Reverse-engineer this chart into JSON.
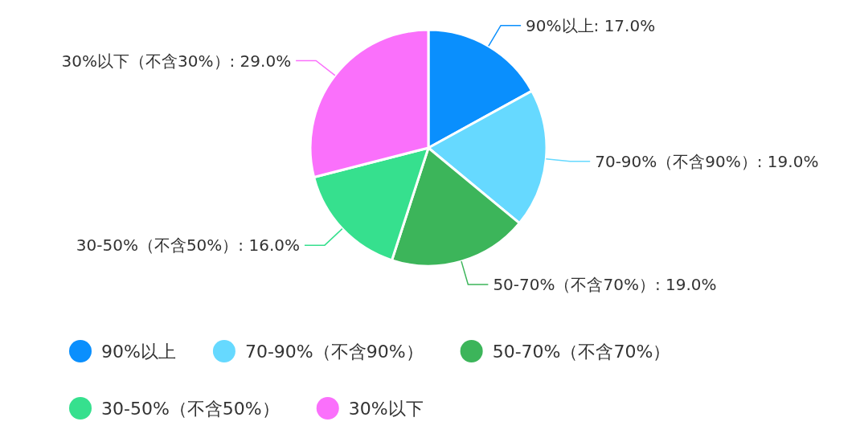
{
  "chart_data": {
    "type": "pie",
    "categories": [
      "90%以上",
      "70-90%（不含90%）",
      "50-70%（不含70%）",
      "30-50%（不含50%）",
      "30%以下"
    ],
    "values": [
      17,
      19,
      19,
      16,
      29
    ],
    "colors": [
      "#0a8ffd",
      "#66d9ff",
      "#3cb55a",
      "#36e08e",
      "#fa70fb"
    ],
    "value_labels": [
      "90%以上: 17.0%",
      "70-90%（不含90%）: 19.0%",
      "50-70%（不含70%）: 19.0%",
      "30-50%（不含50%）: 16.0%",
      "30%以下（不含30%）: 29.0%"
    ],
    "legend": "bottom"
  }
}
